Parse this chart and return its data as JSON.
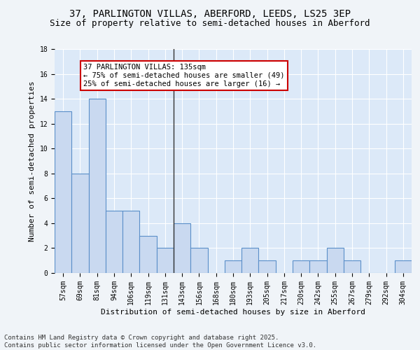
{
  "title1": "37, PARLINGTON VILLAS, ABERFORD, LEEDS, LS25 3EP",
  "title2": "Size of property relative to semi-detached houses in Aberford",
  "xlabel": "Distribution of semi-detached houses by size in Aberford",
  "ylabel": "Number of semi-detached properties",
  "categories": [
    "57sqm",
    "69sqm",
    "81sqm",
    "94sqm",
    "106sqm",
    "119sqm",
    "131sqm",
    "143sqm",
    "156sqm",
    "168sqm",
    "180sqm",
    "193sqm",
    "205sqm",
    "217sqm",
    "230sqm",
    "242sqm",
    "255sqm",
    "267sqm",
    "279sqm",
    "292sqm",
    "304sqm"
  ],
  "values": [
    13,
    8,
    14,
    5,
    5,
    3,
    2,
    4,
    2,
    0,
    1,
    2,
    1,
    0,
    1,
    1,
    2,
    1,
    0,
    0,
    1
  ],
  "bar_color": "#c9d9f0",
  "bar_edge_color": "#5b8fc9",
  "background_color": "#dce9f8",
  "fig_background_color": "#f0f4f8",
  "annotation_text": "37 PARLINGTON VILLAS: 135sqm\n← 75% of semi-detached houses are smaller (49)\n25% of semi-detached houses are larger (16) →",
  "annotation_box_color": "#ffffff",
  "annotation_border_color": "#cc0000",
  "property_line_x": 6.5,
  "ylim": [
    0,
    18
  ],
  "yticks": [
    0,
    2,
    4,
    6,
    8,
    10,
    12,
    14,
    16,
    18
  ],
  "footer1": "Contains HM Land Registry data © Crown copyright and database right 2025.",
  "footer2": "Contains public sector information licensed under the Open Government Licence v3.0.",
  "title_fontsize": 10,
  "subtitle_fontsize": 9,
  "axis_label_fontsize": 8,
  "tick_fontsize": 7,
  "annotation_fontsize": 7.5,
  "footer_fontsize": 6.5
}
